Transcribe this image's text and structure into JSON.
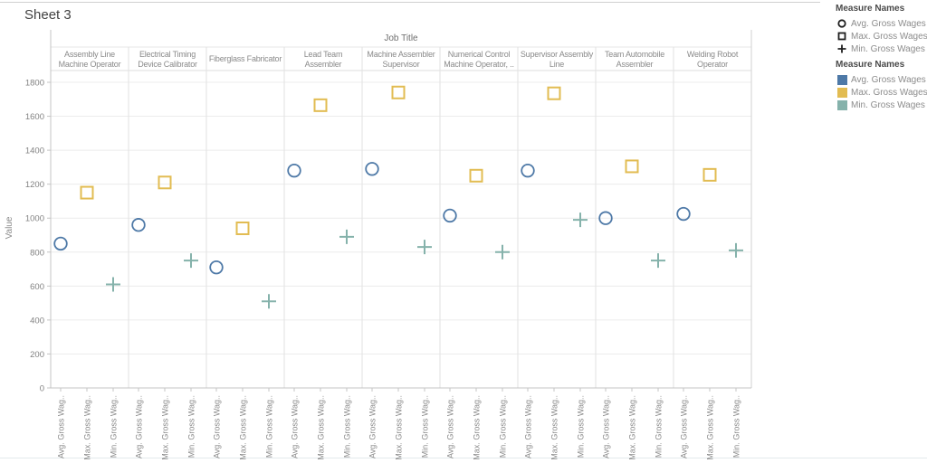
{
  "title": "Sheet 3",
  "chart_data": {
    "type": "scatter",
    "title": "Sheet 3",
    "column_field_label": "Job Title",
    "ylabel": "Value",
    "ylim": [
      0,
      1800
    ],
    "yticks": [
      0,
      200,
      400,
      600,
      800,
      1000,
      1200,
      1400,
      1600,
      1800
    ],
    "grid": true,
    "legend_position": "top-right",
    "categories": [
      "Assembly Line Machine Operator",
      "Electrical Timing Device Calibrator",
      "Fiberglass Fabricator",
      "Lead Team Assembler",
      "Machine Assembler Supervisor",
      "Numerical Control Machine Operator, ..",
      "Supervisor Assembly Line",
      "Team Automobile Assembler",
      "Welding Robot Operator"
    ],
    "series": [
      {
        "name": "Avg. Gross Wages",
        "shape": "circle",
        "color": "#4e79a7",
        "axis_label": "Avg. Gross Wag..",
        "values": [
          850,
          960,
          710,
          1280,
          1290,
          1015,
          1280,
          1000,
          1025
        ]
      },
      {
        "name": "Max. Gross Wages",
        "shape": "square",
        "color": "#e2bc52",
        "axis_label": "Max. Gross Wag..",
        "values": [
          1150,
          1210,
          940,
          1665,
          1740,
          1250,
          1735,
          1305,
          1255
        ]
      },
      {
        "name": "Min. Gross Wages",
        "shape": "plus",
        "color": "#85b2ab",
        "axis_label": "Min. Gross Wag..",
        "values": [
          610,
          750,
          510,
          890,
          830,
          800,
          990,
          750,
          810
        ]
      }
    ]
  },
  "legends": {
    "shape": {
      "title": "Measure Names",
      "items": [
        {
          "label": "Avg. Gross Wages",
          "shape": "circle"
        },
        {
          "label": "Max. Gross Wages",
          "shape": "square"
        },
        {
          "label": "Min. Gross Wages",
          "shape": "plus"
        }
      ]
    },
    "color": {
      "title": "Measure Names",
      "items": [
        {
          "label": "Avg. Gross Wages",
          "color": "#4e79a7"
        },
        {
          "label": "Max. Gross Wages",
          "color": "#e2bc52"
        },
        {
          "label": "Min. Gross Wages",
          "color": "#85b2ab"
        }
      ]
    }
  }
}
